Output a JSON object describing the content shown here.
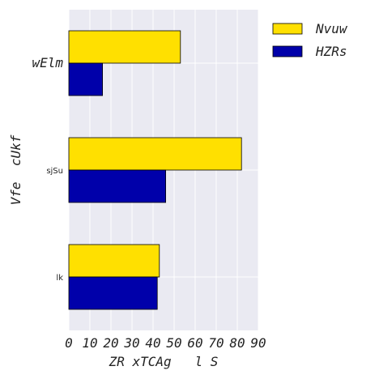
{
  "chart_data": {
    "type": "bar",
    "orientation": "horizontal",
    "categories": [
      "wElm",
      "sjSu",
      "lk"
    ],
    "series": [
      {
        "name": "Nvuw",
        "color": "#FFE000",
        "values": [
          53,
          82,
          43
        ]
      },
      {
        "name": "HZRs",
        "color": "#0000AA",
        "values": [
          16,
          46,
          42
        ]
      }
    ],
    "xlabel": "ZR xTCAg   l S",
    "ylabel": "Vfe  cUkf",
    "xlim": [
      0,
      90
    ],
    "xticks": [
      0,
      10,
      20,
      30,
      40,
      50,
      60,
      70,
      80,
      90
    ],
    "grid": true,
    "legend": "top-right",
    "colors": {
      "background": "#EAEAF2",
      "grid": "#FFFFFF",
      "edge": "#000000"
    }
  }
}
